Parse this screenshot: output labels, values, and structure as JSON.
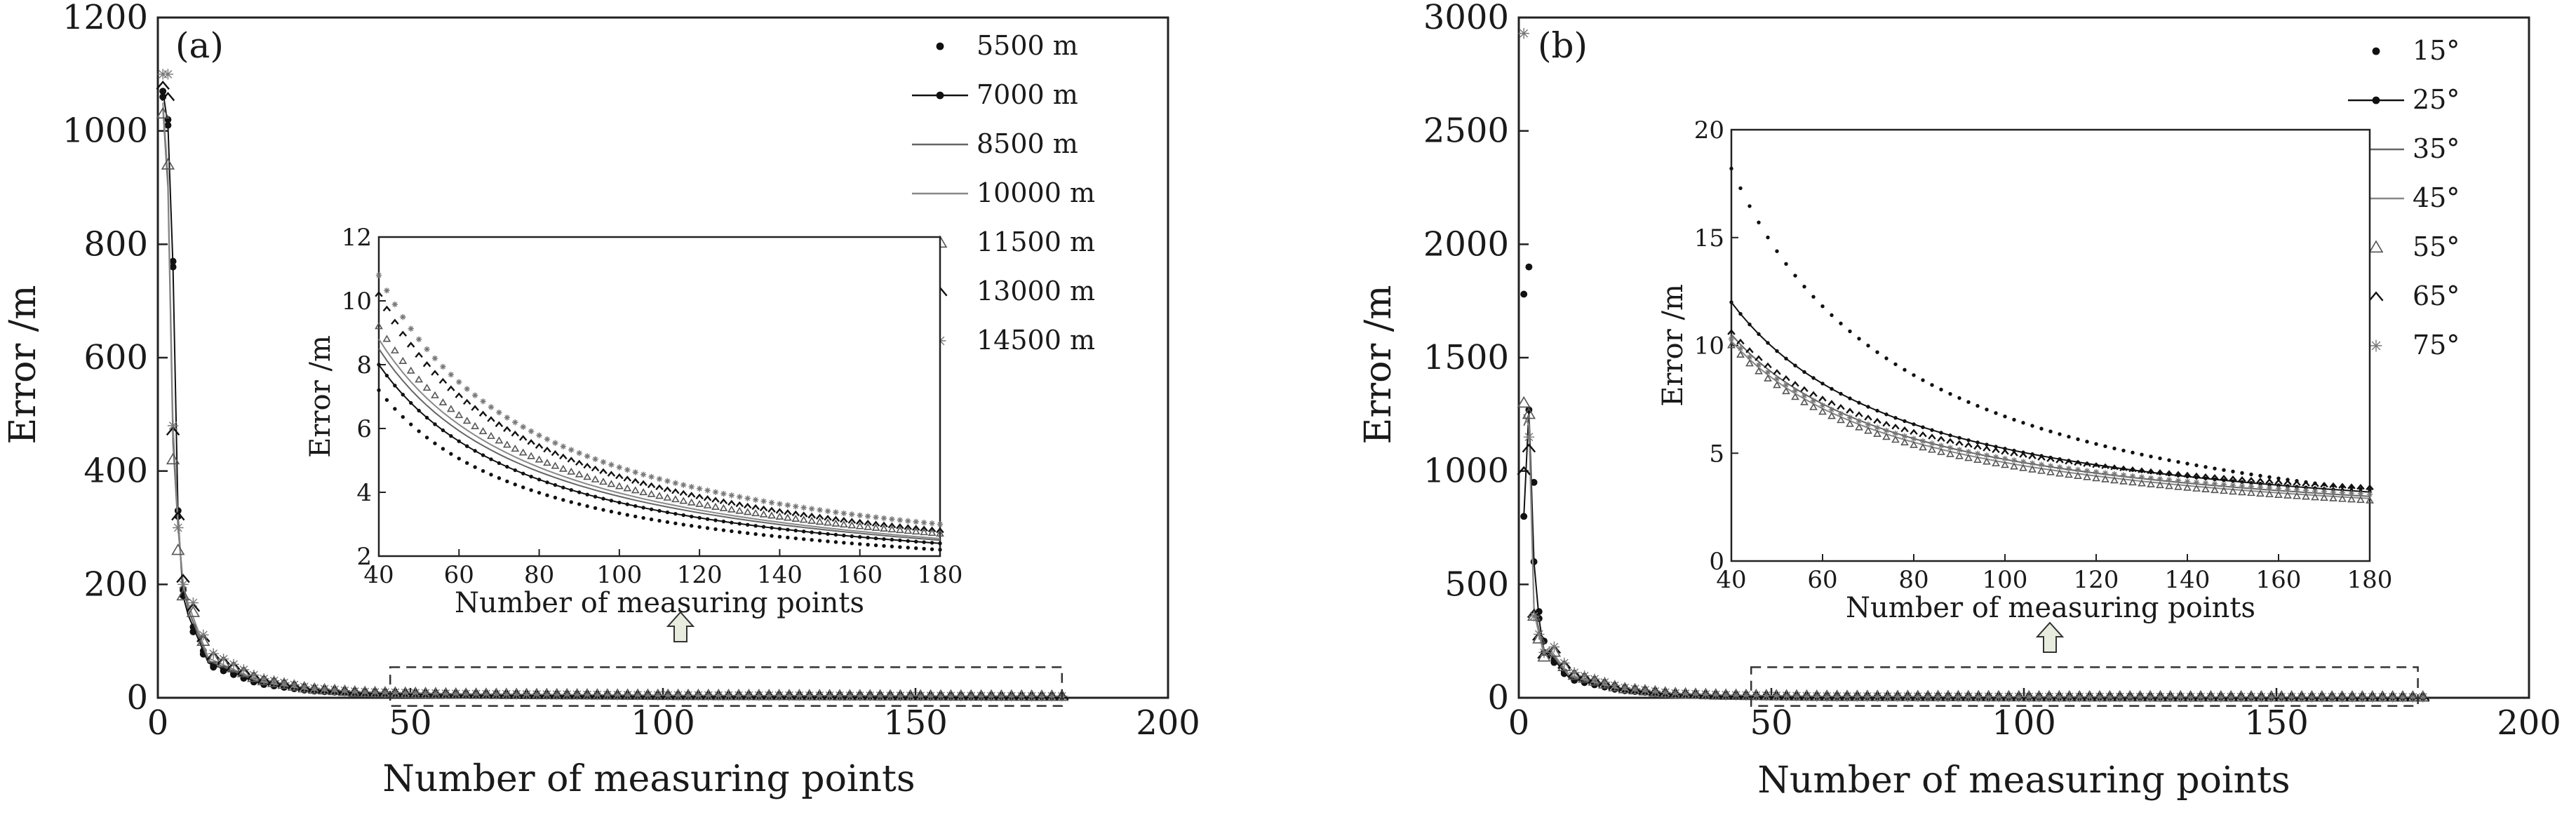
{
  "chart_data": [
    {
      "type": "scatter",
      "panel_label": "(a)",
      "xlabel": "Number of measuring points",
      "ylabel": "Error /m",
      "xlim": [
        0,
        200
      ],
      "ylim": [
        0,
        1200
      ],
      "xticks": [
        "0",
        "50",
        "100",
        "150",
        "200"
      ],
      "yticks": [
        "0",
        "200",
        "400",
        "600",
        "800",
        "1000",
        "1200"
      ],
      "legend_position": "top-right",
      "series": [
        {
          "name": "5500 m",
          "marker": "dot",
          "color": "#111111",
          "x": [
            1,
            2,
            3,
            4,
            5
          ],
          "y": [
            1060,
            1020,
            770,
            330,
            190
          ]
        },
        {
          "name": "7000 m",
          "marker": "line-dot",
          "color": "#111111",
          "x": [
            1,
            2,
            3,
            4,
            5
          ],
          "y": [
            1070,
            1010,
            760,
            320,
            180
          ]
        },
        {
          "name": "8500 m",
          "marker": "line",
          "color": "#666666",
          "x": [
            1,
            2,
            3,
            4,
            5
          ],
          "y": [
            1040,
            900,
            450,
            300,
            200
          ]
        },
        {
          "name": "10000 m",
          "marker": "line",
          "color": "#888888",
          "x": [
            1,
            2,
            3,
            4,
            5
          ],
          "y": [
            1050,
            920,
            480,
            310,
            200
          ]
        },
        {
          "name": "11500 m",
          "marker": "triangle",
          "color": "#555555",
          "x": [
            1,
            2,
            3,
            4,
            5
          ],
          "y": [
            1030,
            940,
            420,
            260,
            180
          ]
        },
        {
          "name": "13000 m",
          "marker": "caret",
          "color": "#111111",
          "x": [
            1,
            2,
            3,
            4,
            5
          ],
          "y": [
            1080,
            1060,
            470,
            320,
            210
          ]
        },
        {
          "name": "14500 m",
          "marker": "star",
          "color": "#777777",
          "x": [
            1,
            2,
            3,
            4,
            5
          ],
          "y": [
            1100,
            1100,
            480,
            300,
            200
          ]
        }
      ],
      "decay_model": {
        "x": [
          5,
          10,
          20,
          30,
          40,
          60,
          100,
          180
        ],
        "y": [
          190,
          70,
          30,
          15,
          9,
          6,
          4,
          2.5
        ]
      },
      "inset": {
        "xlabel": "Number of measuring points",
        "ylabel": "Error /m",
        "xlim": [
          40,
          180
        ],
        "ylim": [
          2,
          12
        ],
        "xticks": [
          "40",
          "60",
          "80",
          "100",
          "120",
          "140",
          "160",
          "180"
        ],
        "yticks": [
          "2",
          "4",
          "6",
          "8",
          "10",
          "12"
        ],
        "curves": [
          {
            "series": "5500 m",
            "start": 7.2,
            "end": 2.2
          },
          {
            "series": "7000 m",
            "start": 8.0,
            "end": 2.4
          },
          {
            "series": "8500 m",
            "start": 8.5,
            "end": 2.5
          },
          {
            "series": "10000 m",
            "start": 8.8,
            "end": 2.55
          },
          {
            "series": "11500 m",
            "start": 9.2,
            "end": 2.7
          },
          {
            "series": "13000 m",
            "start": 10.2,
            "end": 2.8
          },
          {
            "series": "14500 m",
            "start": 10.8,
            "end": 3.0
          }
        ]
      }
    },
    {
      "type": "scatter",
      "panel_label": "(b)",
      "xlabel": "Number of measuring points",
      "ylabel": "Error /m",
      "xlim": [
        0,
        200
      ],
      "ylim": [
        0,
        3000
      ],
      "xticks": [
        "0",
        "50",
        "100",
        "150",
        "200"
      ],
      "yticks": [
        "0",
        "500",
        "1000",
        "1500",
        "2000",
        "2500",
        "3000"
      ],
      "legend_position": "top-right",
      "series": [
        {
          "name": "15°",
          "marker": "dot",
          "color": "#111111",
          "x": [
            1,
            2,
            3,
            4,
            5
          ],
          "y": [
            1780,
            1900,
            950,
            380,
            250
          ]
        },
        {
          "name": "25°",
          "marker": "line-dot",
          "color": "#111111",
          "x": [
            1,
            2,
            3,
            4,
            5
          ],
          "y": [
            800,
            1270,
            600,
            350,
            200
          ]
        },
        {
          "name": "35°",
          "marker": "line",
          "color": "#666666",
          "x": [
            1,
            2,
            3,
            4,
            5
          ],
          "y": [
            1200,
            1250,
            400,
            300,
            200
          ]
        },
        {
          "name": "45°",
          "marker": "line",
          "color": "#888888",
          "x": [
            1,
            2,
            3,
            4,
            5
          ],
          "y": [
            1250,
            1200,
            380,
            280,
            190
          ]
        },
        {
          "name": "55°",
          "marker": "triangle",
          "color": "#555555",
          "x": [
            1,
            2,
            3,
            4,
            5
          ],
          "y": [
            1300,
            1250,
            360,
            260,
            180
          ]
        },
        {
          "name": "65°",
          "marker": "caret",
          "color": "#111111",
          "x": [
            1,
            2,
            3,
            4,
            5
          ],
          "y": [
            1000,
            1100,
            370,
            270,
            190
          ]
        },
        {
          "name": "75°",
          "marker": "star",
          "color": "#777777",
          "x": [
            1,
            2,
            3,
            4,
            5
          ],
          "y": [
            2930,
            1150,
            360,
            280,
            200
          ]
        }
      ],
      "decay_model": {
        "x": [
          5,
          10,
          20,
          30,
          40,
          60,
          100,
          180
        ],
        "y": [
          250,
          100,
          40,
          18,
          11,
          6,
          4,
          3
        ]
      },
      "inset": {
        "xlabel": "Number of measuring points",
        "ylabel": "Error /m",
        "xlim": [
          40,
          180
        ],
        "ylim": [
          0,
          20
        ],
        "xticks": [
          "40",
          "60",
          "80",
          "100",
          "120",
          "140",
          "160",
          "180"
        ],
        "yticks": [
          "0",
          "5",
          "10",
          "15",
          "20"
        ],
        "curves": [
          {
            "series": "15°",
            "start": 18.2,
            "end": 3.3
          },
          {
            "series": "25°",
            "start": 12.0,
            "end": 3.2
          },
          {
            "series": "35°",
            "start": 10.5,
            "end": 3.0
          },
          {
            "series": "45°",
            "start": 10.2,
            "end": 2.9
          },
          {
            "series": "55°",
            "start": 10.0,
            "end": 2.8
          },
          {
            "series": "65°",
            "start": 10.6,
            "end": 3.4
          },
          {
            "series": "75°",
            "start": 10.3,
            "end": 3.1
          }
        ]
      }
    }
  ]
}
